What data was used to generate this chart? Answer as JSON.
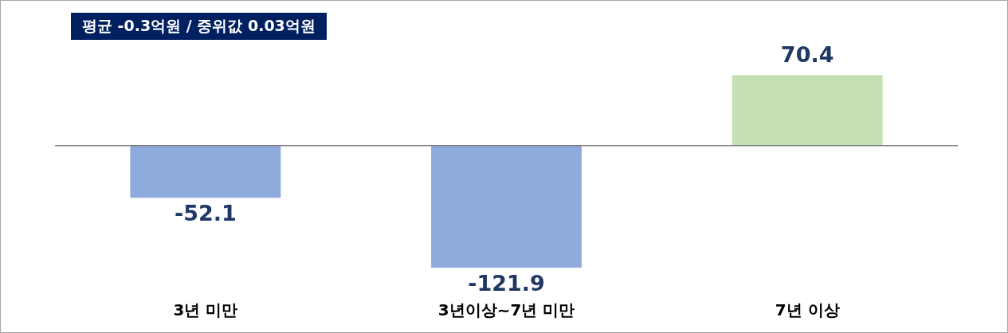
{
  "chart_data": {
    "type": "bar",
    "categories": [
      "3년 미만",
      "3년이상~7년 미만",
      "7년 이상"
    ],
    "values": [
      -52.1,
      -121.9,
      70.4
    ],
    "colors": [
      "#8faadc",
      "#8faadc",
      "#c5e0b4"
    ],
    "data_labels": true,
    "annotations": [
      "평균 -0.3억원 / 중위값 0.03억원"
    ]
  }
}
